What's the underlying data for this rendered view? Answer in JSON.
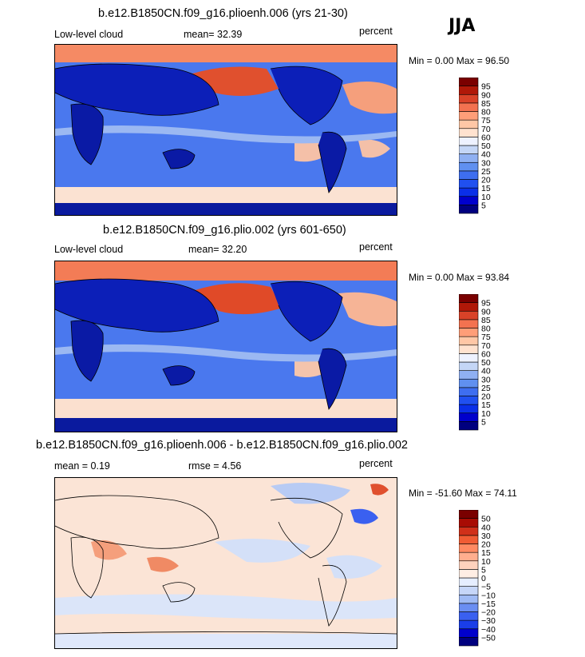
{
  "season": "JJA",
  "panels": [
    {
      "title": "b.e12.B1850CN.f09_g16.plioenh.006 (yrs 21-30)",
      "left_label": "Low-level cloud",
      "center_label": "mean=  32.39",
      "right_label": "percent",
      "stats": "Min =    0.00 Max =  96.50"
    },
    {
      "title": "b.e12.B1850CN.f09_g16.plio.002 (yrs 601-650)",
      "left_label": "Low-level cloud",
      "center_label": "mean=  32.20",
      "right_label": "percent",
      "stats": "Min =    0.00 Max =  93.84"
    },
    {
      "title": "b.e12.B1850CN.f09_g16.plioenh.006 - b.e12.B1850CN.f09_g16.plio.002",
      "left_label": "mean =   0.19",
      "center_label": "rmse =   4.56",
      "right_label": "percent",
      "stats": "Min = -51.60 Max =  74.11"
    }
  ],
  "chart_data": [
    {
      "type": "heatmap",
      "title": "b.e12.B1850CN.f09_g16.plioenh.006 (yrs 21-30)",
      "variable": "Low-level cloud",
      "units": "percent",
      "mean": 32.39,
      "min": 0.0,
      "max": 96.5,
      "colorbar_levels": [
        5,
        10,
        15,
        20,
        25,
        30,
        40,
        50,
        60,
        70,
        75,
        80,
        85,
        90,
        95
      ],
      "colorbar_colors": [
        "#00007f",
        "#0000cc",
        "#0a2fe8",
        "#2050f0",
        "#3e6ef0",
        "#6090f0",
        "#8fb0f2",
        "#c4d6f6",
        "#eef2ff",
        "#ffe2cf",
        "#ffc7a6",
        "#ff9e78",
        "#f37250",
        "#d94228",
        "#b01808",
        "#7a0000"
      ]
    },
    {
      "type": "heatmap",
      "title": "b.e12.B1850CN.f09_g16.plio.002 (yrs 601-650)",
      "variable": "Low-level cloud",
      "units": "percent",
      "mean": 32.2,
      "min": 0.0,
      "max": 93.84,
      "colorbar_levels": [
        5,
        10,
        15,
        20,
        25,
        30,
        40,
        50,
        60,
        70,
        75,
        80,
        85,
        90,
        95
      ],
      "colorbar_colors": [
        "#00007f",
        "#0000cc",
        "#0a2fe8",
        "#2050f0",
        "#3e6ef0",
        "#6090f0",
        "#8fb0f2",
        "#c4d6f6",
        "#eef2ff",
        "#ffe2cf",
        "#ffc7a6",
        "#ff9e78",
        "#f37250",
        "#d94228",
        "#b01808",
        "#7a0000"
      ]
    },
    {
      "type": "heatmap",
      "title": "b.e12.B1850CN.f09_g16.plioenh.006 - b.e12.B1850CN.f09_g16.plio.002",
      "units": "percent",
      "mean": 0.19,
      "rmse": 4.56,
      "min": -51.6,
      "max": 74.11,
      "colorbar_levels": [
        -50,
        -40,
        -30,
        -20,
        -15,
        -10,
        -5,
        0,
        5,
        10,
        15,
        20,
        30,
        40,
        50
      ],
      "colorbar_colors": [
        "#00007f",
        "#0000cc",
        "#1a3ee8",
        "#3a60f0",
        "#6a8ef2",
        "#9fbaf4",
        "#c6d6f8",
        "#e6eeff",
        "#ffeee4",
        "#ffd2bd",
        "#ffae8e",
        "#ff8a62",
        "#f05c34",
        "#d0301a",
        "#a80c04",
        "#7a0000"
      ]
    }
  ]
}
